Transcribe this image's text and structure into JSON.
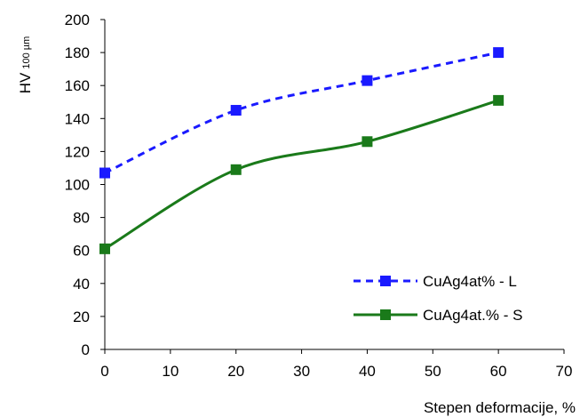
{
  "chart_data": {
    "type": "line",
    "title": "",
    "xlabel": "Stepen deformacije, %",
    "ylabel": "HV",
    "ylabel_subscript": "100 µm",
    "xlim": [
      0,
      70
    ],
    "ylim": [
      0,
      200
    ],
    "xticks": [
      "0",
      "10",
      "20",
      "30",
      "40",
      "50",
      "60",
      "70"
    ],
    "yticks": [
      "0",
      "20",
      "40",
      "60",
      "80",
      "100",
      "120",
      "140",
      "160",
      "180",
      "200"
    ],
    "grid": false,
    "legend_position": "bottom-right",
    "series": [
      {
        "name": "CuAg4at% - L",
        "color": "#1a1aff",
        "line_style": "dashed",
        "marker": "square",
        "x": [
          0,
          20,
          40,
          60
        ],
        "y": [
          107,
          145,
          163,
          180
        ]
      },
      {
        "name": "CuAg4at.% - S",
        "color": "#1a7a1a",
        "line_style": "solid",
        "marker": "square",
        "x": [
          0,
          20,
          40,
          60
        ],
        "y": [
          61,
          109,
          126,
          151
        ]
      }
    ]
  }
}
